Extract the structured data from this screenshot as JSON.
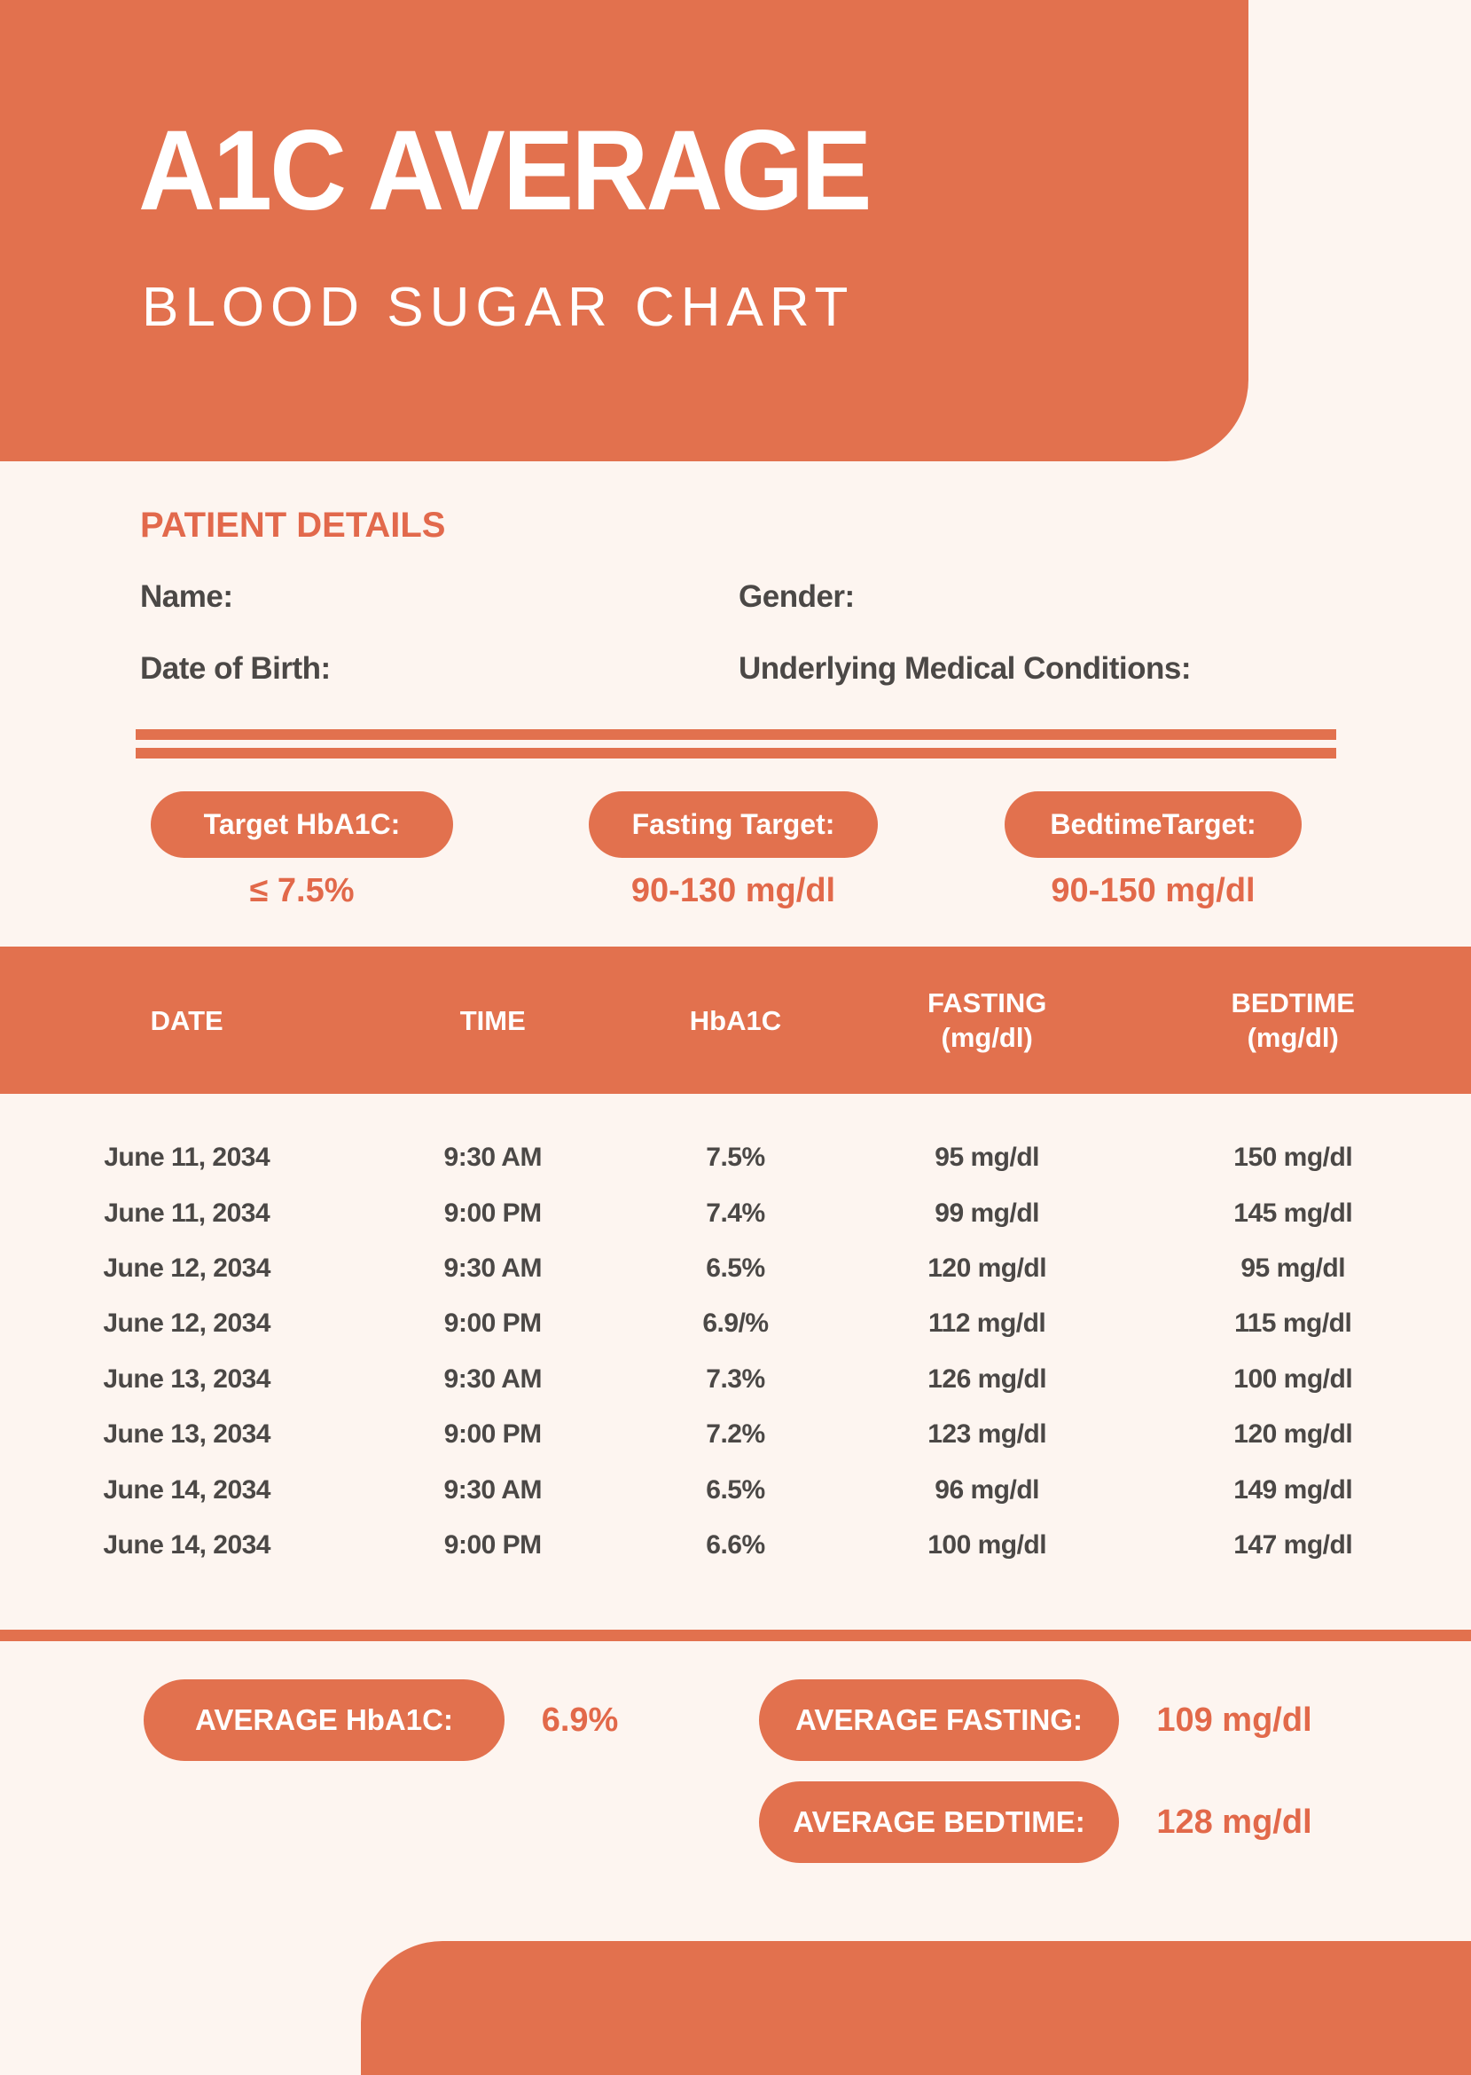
{
  "colors": {
    "accent": "#E2714E",
    "accent_text": "#E2694A",
    "background": "#FDF5F0",
    "dark_text": "#4B4846",
    "header_text": "#FFFFFF"
  },
  "header": {
    "title": "A1C AVERAGE",
    "subtitle": "BLOOD SUGAR CHART"
  },
  "patient": {
    "heading": "PATIENT DETAILS",
    "name_label": "Name:",
    "gender_label": "Gender:",
    "dob_label": "Date of Birth:",
    "conditions_label": "Underlying Medical Conditions:"
  },
  "targets": [
    {
      "label": "Target HbA1C:",
      "value": "≤ 7.5%"
    },
    {
      "label": "Fasting Target:",
      "value": "90-130 mg/dl"
    },
    {
      "label": "BedtimeTarget:",
      "value": "90-150 mg/dl"
    }
  ],
  "table": {
    "headers": [
      {
        "line1": "DATE",
        "line2": ""
      },
      {
        "line1": "TIME",
        "line2": ""
      },
      {
        "line1": "HbA1C",
        "line2": ""
      },
      {
        "line1": "FASTING",
        "line2": "(mg/dl)"
      },
      {
        "line1": "BEDTIME",
        "line2": "(mg/dl)"
      }
    ],
    "rows": [
      [
        "June 11, 2034",
        "9:30 AM",
        "7.5%",
        "95 mg/dl",
        "150 mg/dl"
      ],
      [
        "June 11, 2034",
        "9:00 PM",
        "7.4%",
        "99 mg/dl",
        "145 mg/dl"
      ],
      [
        "June 12, 2034",
        "9:30 AM",
        "6.5%",
        "120 mg/dl",
        "95 mg/dl"
      ],
      [
        "June 12, 2034",
        "9:00 PM",
        "6.9/%",
        "112 mg/dl",
        "115 mg/dl"
      ],
      [
        "June 13, 2034",
        "9:30 AM",
        "7.3%",
        "126 mg/dl",
        "100 mg/dl"
      ],
      [
        "June 13, 2034",
        "9:00 PM",
        "7.2%",
        "123 mg/dl",
        "120 mg/dl"
      ],
      [
        "June 14, 2034",
        "9:30 AM",
        "6.5%",
        "96 mg/dl",
        "149 mg/dl"
      ],
      [
        "June 14, 2034",
        "9:00 PM",
        "6.6%",
        "100 mg/dl",
        "147 mg/dl"
      ]
    ]
  },
  "averages": [
    {
      "label": "AVERAGE HbA1C:",
      "value": "6.9%"
    },
    {
      "label": "AVERAGE FASTING:",
      "value": "109 mg/dl"
    },
    {
      "label": "AVERAGE BEDTIME:",
      "value": "128 mg/dl"
    }
  ]
}
